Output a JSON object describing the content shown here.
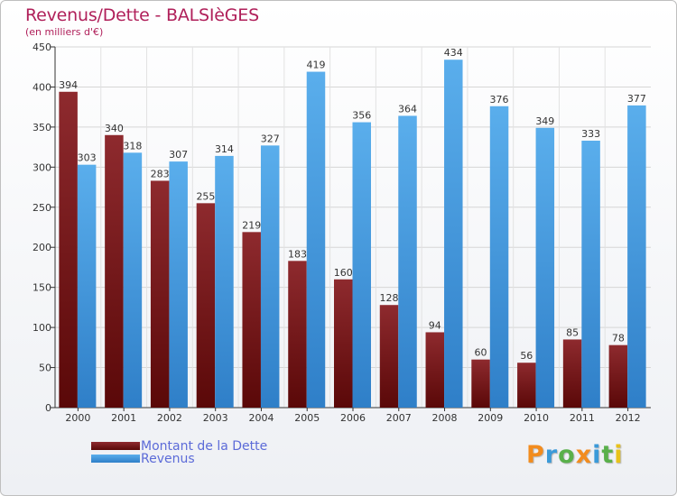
{
  "title": "Revenus/Dette - BALSIèGES",
  "subtitle": "(en milliers d'€)",
  "colors": {
    "debt": "#6b1010",
    "debt_light": "#8e2a2e",
    "revenue": "#3d8fd8",
    "revenue_light": "#5aaeec",
    "title": "#b0205a",
    "legend_text": "#5c6bd8"
  },
  "legend": [
    {
      "label": "Montant de la Dette",
      "color": "#6b1010"
    },
    {
      "label": "Revenus",
      "color": "#3d8fd8"
    }
  ],
  "logo_text": "Proxiti",
  "chart_data": {
    "type": "bar",
    "title": "Revenus/Dette - BALSIèGES",
    "subtitle": "(en milliers d'€)",
    "categories": [
      "2000",
      "2001",
      "2002",
      "2003",
      "2004",
      "2005",
      "2006",
      "2007",
      "2008",
      "2009",
      "2010",
      "2011",
      "2012"
    ],
    "series": [
      {
        "name": "Montant de la Dette",
        "values": [
          394,
          340,
          283,
          255,
          219,
          183,
          160,
          128,
          94,
          60,
          56,
          85,
          78
        ]
      },
      {
        "name": "Revenus",
        "values": [
          303,
          318,
          307,
          314,
          327,
          419,
          356,
          364,
          434,
          376,
          349,
          333,
          377
        ]
      }
    ],
    "ylim": [
      0,
      450
    ],
    "yticks": [
      0,
      50,
      100,
      150,
      200,
      250,
      300,
      350,
      400,
      450
    ],
    "grid": true,
    "legend_position": "bottom-left"
  }
}
